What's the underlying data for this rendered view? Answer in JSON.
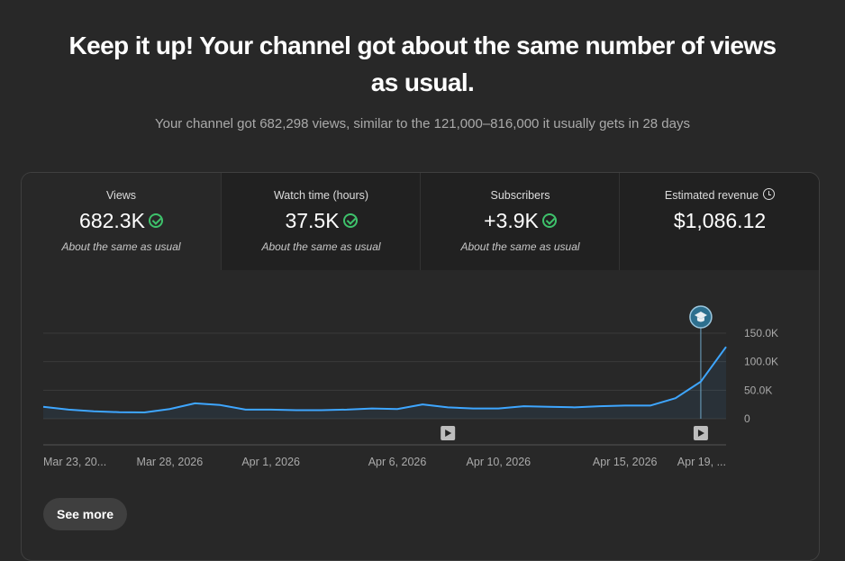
{
  "headline": {
    "line1": "Keep it up! Your channel got about the same number of views",
    "line2": "as usual."
  },
  "subtitle": "Your channel got 682,298 views, similar to the 121,000–816,000 it usually gets in 28 days",
  "metrics": [
    {
      "label": "Views",
      "value": "682.3K",
      "note": "About the same as usual",
      "status_icon": "check-circle-icon",
      "active": true
    },
    {
      "label": "Watch time (hours)",
      "value": "37.5K",
      "note": "About the same as usual",
      "status_icon": "check-circle-icon",
      "active": false
    },
    {
      "label": "Subscribers",
      "value": "+3.9K",
      "note": "About the same as usual",
      "status_icon": "check-circle-icon",
      "active": false
    },
    {
      "label": "Estimated revenue",
      "value": "$1,086.12",
      "note": "",
      "status_icon": "clock-icon",
      "active": false
    }
  ],
  "colors": {
    "line": "#3ea6ff",
    "check": "#3ec26b",
    "marker": "#2d6f8e",
    "background": "#282828"
  },
  "chart_data": {
    "type": "area",
    "x": [
      "Mar 23, 2026",
      "Mar 24, 2026",
      "Mar 25, 2026",
      "Mar 26, 2026",
      "Mar 27, 2026",
      "Mar 28, 2026",
      "Mar 29, 2026",
      "Mar 30, 2026",
      "Mar 31, 2026",
      "Apr 1, 2026",
      "Apr 2, 2026",
      "Apr 3, 2026",
      "Apr 4, 2026",
      "Apr 5, 2026",
      "Apr 6, 2026",
      "Apr 7, 2026",
      "Apr 8, 2026",
      "Apr 9, 2026",
      "Apr 10, 2026",
      "Apr 11, 2026",
      "Apr 12, 2026",
      "Apr 13, 2026",
      "Apr 14, 2026",
      "Apr 15, 2026",
      "Apr 16, 2026",
      "Apr 17, 2026",
      "Apr 18, 2026",
      "Apr 19, 2026"
    ],
    "series": [
      {
        "values": [
          21000,
          16000,
          13000,
          11500,
          11000,
          17000,
          27000,
          24000,
          16000,
          16000,
          15000,
          15000,
          16000,
          18000,
          17000,
          25000,
          20000,
          18000,
          18000,
          22000,
          21000,
          20000,
          22000,
          23000,
          23000,
          36000,
          65000,
          126000
        ]
      }
    ],
    "x_tick_labels": [
      {
        "index": 0,
        "label": "Mar 23, 20..."
      },
      {
        "index": 5,
        "label": "Mar 28, 2026"
      },
      {
        "index": 9,
        "label": "Apr 1, 2026"
      },
      {
        "index": 14,
        "label": "Apr 6, 2026"
      },
      {
        "index": 18,
        "label": "Apr 10, 2026"
      },
      {
        "index": 23,
        "label": "Apr 15, 2026"
      },
      {
        "index": 27,
        "label": "Apr 19, ..."
      }
    ],
    "y_ticks": [
      0,
      50000,
      100000,
      150000
    ],
    "y_tick_labels": [
      "0",
      "50.0K",
      "100.0K",
      "150.0K"
    ],
    "ylim": [
      0,
      150000
    ],
    "y_axis_position": "right",
    "grid": true,
    "video_markers": [
      16,
      26
    ],
    "milestone_marker": {
      "index": 26,
      "icon": "graduation-cap-icon"
    }
  },
  "see_more_label": "See more"
}
